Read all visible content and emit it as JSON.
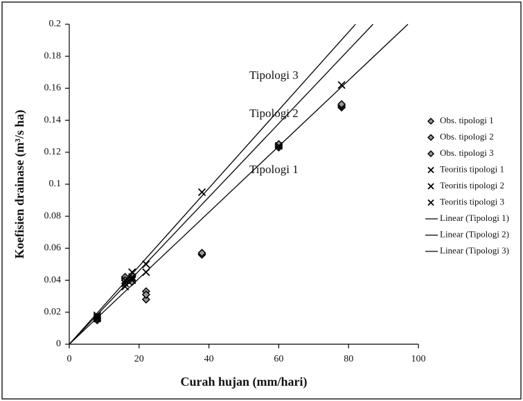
{
  "chart_data": {
    "type": "scatter",
    "xlabel": "Curah hujan (mm/hari)",
    "ylabel": "Koefisien drainase (m³/s ha)",
    "xlim": [
      0,
      100
    ],
    "ylim": [
      0,
      0.2
    ],
    "xticks": [
      0,
      20,
      40,
      60,
      80,
      100
    ],
    "yticks": [
      0,
      0.02,
      0.04,
      0.06,
      0.08,
      0.1,
      0.12,
      0.14,
      0.16,
      0.18,
      0.2
    ],
    "annotations": [
      "Tipologi 3",
      "Tipologi 2",
      "Tipologi 1"
    ],
    "series": [
      {
        "name": "Obs. tipologi 1",
        "marker": "diamond",
        "color": "#000000",
        "x": [
          8,
          16,
          18,
          22,
          38,
          60,
          78
        ],
        "values": [
          0.015,
          0.041,
          0.039,
          0.028,
          0.056,
          0.123,
          0.148
        ]
      },
      {
        "name": "Obs. tipologi 2",
        "marker": "diamond",
        "color": "#000000",
        "x": [
          8,
          16,
          18,
          22,
          38,
          60,
          78
        ],
        "values": [
          0.016,
          0.042,
          0.042,
          0.033,
          0.057,
          0.124,
          0.149
        ]
      },
      {
        "name": "Obs. tipologi 3",
        "marker": "diamond",
        "color": "#000000",
        "x": [
          8,
          16,
          18,
          22,
          38,
          60,
          78
        ],
        "values": [
          0.017,
          0.04,
          0.043,
          0.031,
          0.057,
          0.125,
          0.15
        ]
      },
      {
        "name": "Teoritis tipologi 1",
        "marker": "x",
        "color": "#000000",
        "x": [
          8,
          16,
          18,
          22,
          60,
          78
        ],
        "values": [
          0.016,
          0.036,
          0.04,
          0.045,
          0.124,
          0.162
        ]
      },
      {
        "name": "Teoritis tipologi 2",
        "marker": "x",
        "color": "#000000",
        "x": [
          8,
          16,
          18,
          22
        ],
        "values": [
          0.017,
          0.038,
          0.042,
          0.05
        ]
      },
      {
        "name": "Teoritis tipologi 3",
        "marker": "x",
        "color": "#000000",
        "x": [
          8,
          16,
          18,
          38
        ],
        "values": [
          0.018,
          0.04,
          0.045,
          0.095
        ]
      },
      {
        "name": "Linear (Tipologi 1)",
        "marker": "line",
        "color": "#000000",
        "x": [
          0,
          97
        ],
        "values": [
          0,
          0.2
        ]
      },
      {
        "name": "Linear (Tipologi 2)",
        "marker": "line",
        "color": "#000000",
        "x": [
          0,
          87
        ],
        "values": [
          0,
          0.2
        ]
      },
      {
        "name": "Linear (Tipologi 3)",
        "marker": "line",
        "color": "#000000",
        "x": [
          0,
          82
        ],
        "values": [
          0,
          0.2
        ]
      }
    ]
  }
}
